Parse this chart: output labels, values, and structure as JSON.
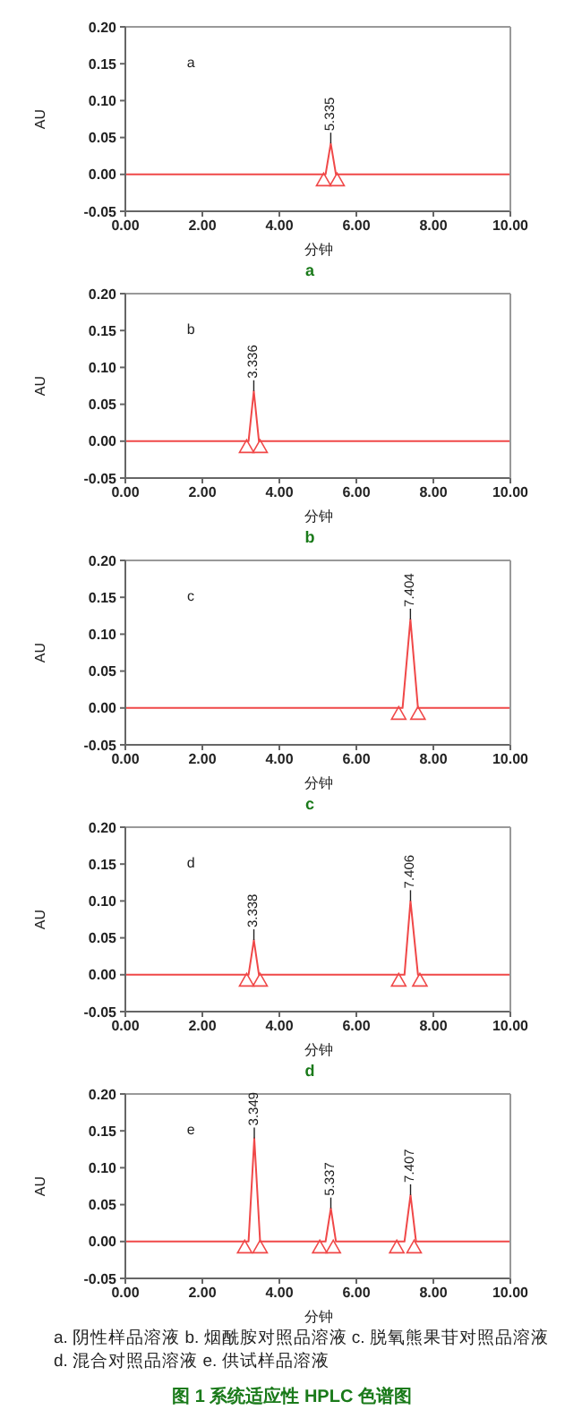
{
  "chart_data": [
    {
      "type": "line",
      "title": "a",
      "subtitle": "a",
      "xlabel": "分钟",
      "ylabel": "AU",
      "xlim": [
        0,
        10
      ],
      "ylim": [
        -0.05,
        0.2
      ],
      "xticks": [
        {
          "value": 0,
          "label": "0.00"
        },
        {
          "value": 2,
          "label": "2.00"
        },
        {
          "value": 4,
          "label": "4.00"
        },
        {
          "value": 6,
          "label": "6.00"
        },
        {
          "value": 8,
          "label": "8.00"
        },
        {
          "value": 10,
          "label": "10.00"
        }
      ],
      "yticks": [
        {
          "value": -0.05,
          "label": "-0.05"
        },
        {
          "value": 0,
          "label": "0.00"
        },
        {
          "value": 0.05,
          "label": "0.05"
        },
        {
          "value": 0.1,
          "label": "0.10"
        },
        {
          "value": 0.15,
          "label": "0.15"
        },
        {
          "value": 0.2,
          "label": "0.20"
        }
      ],
      "marker": "none",
      "line_style": "solid",
      "series": [
        {
          "type": "line",
          "color": "#f04848",
          "x": [
            0,
            5.2,
            5.335,
            5.47,
            10
          ],
          "values": [
            0,
            0,
            0.042,
            0,
            0
          ]
        },
        {
          "type": "scatter",
          "marker": "triangle",
          "color": "#f04848",
          "x": [
            5.15,
            5.5
          ],
          "values": [
            -0.008,
            -0.008
          ]
        }
      ],
      "annotations": [
        {
          "text": "5.335",
          "x": 5.335,
          "y": 0.042
        }
      ]
    },
    {
      "type": "line",
      "title": "b",
      "subtitle": "b",
      "xlabel": "分钟",
      "ylabel": "AU",
      "xlim": [
        0,
        10
      ],
      "ylim": [
        -0.05,
        0.2
      ],
      "xticks": [
        {
          "value": 0,
          "label": "0.00"
        },
        {
          "value": 2,
          "label": "2.00"
        },
        {
          "value": 4,
          "label": "4.00"
        },
        {
          "value": 6,
          "label": "6.00"
        },
        {
          "value": 8,
          "label": "8.00"
        },
        {
          "value": 10,
          "label": "10.00"
        }
      ],
      "yticks": [
        {
          "value": -0.05,
          "label": "-0.05"
        },
        {
          "value": 0,
          "label": "0.00"
        },
        {
          "value": 0.05,
          "label": "0.05"
        },
        {
          "value": 0.1,
          "label": "0.10"
        },
        {
          "value": 0.15,
          "label": "0.15"
        },
        {
          "value": 0.2,
          "label": "0.20"
        }
      ],
      "marker": "none",
      "line_style": "solid",
      "series": [
        {
          "type": "line",
          "color": "#f04848",
          "x": [
            0,
            3.2,
            3.336,
            3.47,
            10
          ],
          "values": [
            0,
            0,
            0.068,
            0,
            0
          ]
        },
        {
          "type": "scatter",
          "marker": "triangle",
          "color": "#f04848",
          "x": [
            3.15,
            3.5
          ],
          "values": [
            -0.008,
            -0.008
          ]
        }
      ],
      "annotations": [
        {
          "text": "3.336",
          "x": 3.336,
          "y": 0.068
        }
      ]
    },
    {
      "type": "line",
      "title": "c",
      "subtitle": "c",
      "xlabel": "分钟",
      "ylabel": "AU",
      "xlim": [
        0,
        10
      ],
      "ylim": [
        -0.05,
        0.2
      ],
      "xticks": [
        {
          "value": 0,
          "label": "0.00"
        },
        {
          "value": 2,
          "label": "2.00"
        },
        {
          "value": 4,
          "label": "4.00"
        },
        {
          "value": 6,
          "label": "6.00"
        },
        {
          "value": 8,
          "label": "8.00"
        },
        {
          "value": 10,
          "label": "10.00"
        }
      ],
      "yticks": [
        {
          "value": -0.05,
          "label": "-0.05"
        },
        {
          "value": 0,
          "label": "0.00"
        },
        {
          "value": 0.05,
          "label": "0.05"
        },
        {
          "value": 0.1,
          "label": "0.10"
        },
        {
          "value": 0.15,
          "label": "0.15"
        },
        {
          "value": 0.2,
          "label": "0.20"
        }
      ],
      "marker": "none",
      "line_style": "solid",
      "series": [
        {
          "type": "line",
          "color": "#f04848",
          "x": [
            0,
            7.2,
            7.404,
            7.6,
            10
          ],
          "values": [
            0,
            0,
            0.12,
            0,
            0
          ]
        },
        {
          "type": "scatter",
          "marker": "triangle",
          "color": "#f04848",
          "x": [
            7.1,
            7.6
          ],
          "values": [
            -0.008,
            -0.008
          ]
        }
      ],
      "annotations": [
        {
          "text": "7.404",
          "x": 7.404,
          "y": 0.12
        }
      ]
    },
    {
      "type": "line",
      "title": "d",
      "subtitle": "d",
      "xlabel": "分钟",
      "ylabel": "AU",
      "xlim": [
        0,
        10
      ],
      "ylim": [
        -0.05,
        0.2
      ],
      "xticks": [
        {
          "value": 0,
          "label": "0.00"
        },
        {
          "value": 2,
          "label": "2.00"
        },
        {
          "value": 4,
          "label": "4.00"
        },
        {
          "value": 6,
          "label": "6.00"
        },
        {
          "value": 8,
          "label": "8.00"
        },
        {
          "value": 10,
          "label": "10.00"
        }
      ],
      "yticks": [
        {
          "value": -0.05,
          "label": "-0.05"
        },
        {
          "value": 0,
          "label": "0.00"
        },
        {
          "value": 0.05,
          "label": "0.05"
        },
        {
          "value": 0.1,
          "label": "0.10"
        },
        {
          "value": 0.15,
          "label": "0.15"
        },
        {
          "value": 0.2,
          "label": "0.20"
        }
      ],
      "marker": "none",
      "line_style": "solid",
      "series": [
        {
          "type": "line",
          "color": "#f04848",
          "x": [
            0,
            3.2,
            3.338,
            3.47,
            7.25,
            7.406,
            7.6,
            10
          ],
          "values": [
            0,
            0,
            0.047,
            0,
            0,
            0.1,
            0,
            0
          ]
        },
        {
          "type": "scatter",
          "marker": "triangle",
          "color": "#f04848",
          "x": [
            3.15,
            3.5,
            7.1,
            7.65
          ],
          "values": [
            -0.008,
            -0.008,
            -0.008,
            -0.008
          ]
        }
      ],
      "annotations": [
        {
          "text": "3.338",
          "x": 3.338,
          "y": 0.047
        },
        {
          "text": "7.406",
          "x": 7.406,
          "y": 0.1
        }
      ]
    },
    {
      "type": "line",
      "subtitle": "e",
      "xlabel": "分钟",
      "ylabel": "AU",
      "xlim": [
        0,
        10
      ],
      "ylim": [
        -0.05,
        0.2
      ],
      "xticks": [
        {
          "value": 0,
          "label": "0.00"
        },
        {
          "value": 2,
          "label": "2.00"
        },
        {
          "value": 4,
          "label": "4.00"
        },
        {
          "value": 6,
          "label": "6.00"
        },
        {
          "value": 8,
          "label": "8.00"
        },
        {
          "value": 10,
          "label": "10.00"
        }
      ],
      "yticks": [
        {
          "value": -0.05,
          "label": "-0.05"
        },
        {
          "value": 0,
          "label": "0.00"
        },
        {
          "value": 0.05,
          "label": "0.05"
        },
        {
          "value": 0.1,
          "label": "0.10"
        },
        {
          "value": 0.15,
          "label": "0.15"
        },
        {
          "value": 0.2,
          "label": "0.20"
        }
      ],
      "marker": "none",
      "line_style": "solid",
      "series": [
        {
          "type": "line",
          "color": "#f04848",
          "x": [
            0,
            3.2,
            3.349,
            3.5,
            5.2,
            5.337,
            5.47,
            7.25,
            7.407,
            7.55,
            10
          ],
          "values": [
            0,
            0,
            0.14,
            0,
            0,
            0.045,
            0,
            0,
            0.063,
            0,
            0
          ]
        },
        {
          "type": "scatter",
          "marker": "triangle",
          "color": "#f04848",
          "x": [
            3.1,
            3.5,
            5.05,
            5.4,
            7.05,
            7.5
          ],
          "values": [
            -0.008,
            -0.008,
            -0.008,
            -0.008,
            -0.008,
            -0.008
          ]
        }
      ],
      "annotations": [
        {
          "text": "3.349",
          "x": 3.349,
          "y": 0.14
        },
        {
          "text": "5.337",
          "x": 5.337,
          "y": 0.045
        },
        {
          "text": "7.407",
          "x": 7.407,
          "y": 0.063
        },
        "a. 阴性样品溶液 b. 烟酰胺对照品溶液 c. 脱氧熊果苷对照品溶液",
        "d. 混合对照品溶液 e. 供试样品溶液",
        "图 1 系统适应性 HPLC 色谱图"
      ]
    }
  ]
}
